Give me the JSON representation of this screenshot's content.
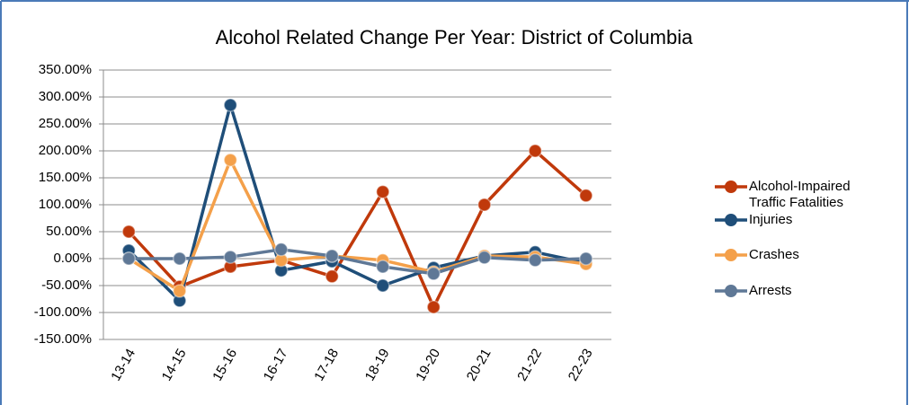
{
  "chart_data": {
    "type": "line",
    "title": "Alcohol Related Change Per Year: District of Columbia",
    "categories": [
      "13-14",
      "14-15",
      "15-16",
      "16-17",
      "17-18",
      "18-19",
      "19-20",
      "20-21",
      "21-22",
      "22-23"
    ],
    "series": [
      {
        "name": "Alcohol-Impaired Traffic Fatalities",
        "color": "#c0390b",
        "values": [
          50,
          -52,
          -15,
          -3,
          -33,
          124,
          -90,
          100,
          200,
          117
        ]
      },
      {
        "name": "Injuries",
        "color": "#1f4e79",
        "values": [
          15,
          -78,
          285,
          -22,
          -5,
          -50,
          -17,
          5,
          12,
          -8
        ]
      },
      {
        "name": "Crashes",
        "color": "#f4a04a",
        "values": [
          0,
          -60,
          183,
          -3,
          5,
          -3,
          -25,
          5,
          3,
          -10
        ]
      },
      {
        "name": "Arrests",
        "color": "#5f7896",
        "values": [
          0,
          0,
          3,
          17,
          5,
          -15,
          -28,
          2,
          -3,
          0
        ]
      }
    ],
    "ylim": [
      -150,
      350
    ],
    "yticks": [
      {
        "value": -150,
        "label": "-150.00%"
      },
      {
        "value": -100,
        "label": "-100.00%"
      },
      {
        "value": -50,
        "label": "-50.00%"
      },
      {
        "value": 0,
        "label": "0.00%"
      },
      {
        "value": 50,
        "label": "50.00%"
      },
      {
        "value": 100,
        "label": "100.00%"
      },
      {
        "value": 150,
        "label": "150.00%"
      },
      {
        "value": 200,
        "label": "200.00%"
      },
      {
        "value": 250,
        "label": "250.00%"
      },
      {
        "value": 300,
        "label": "300.00%"
      },
      {
        "value": 350,
        "label": "350.00%"
      }
    ],
    "grid": true,
    "legend": "right"
  }
}
